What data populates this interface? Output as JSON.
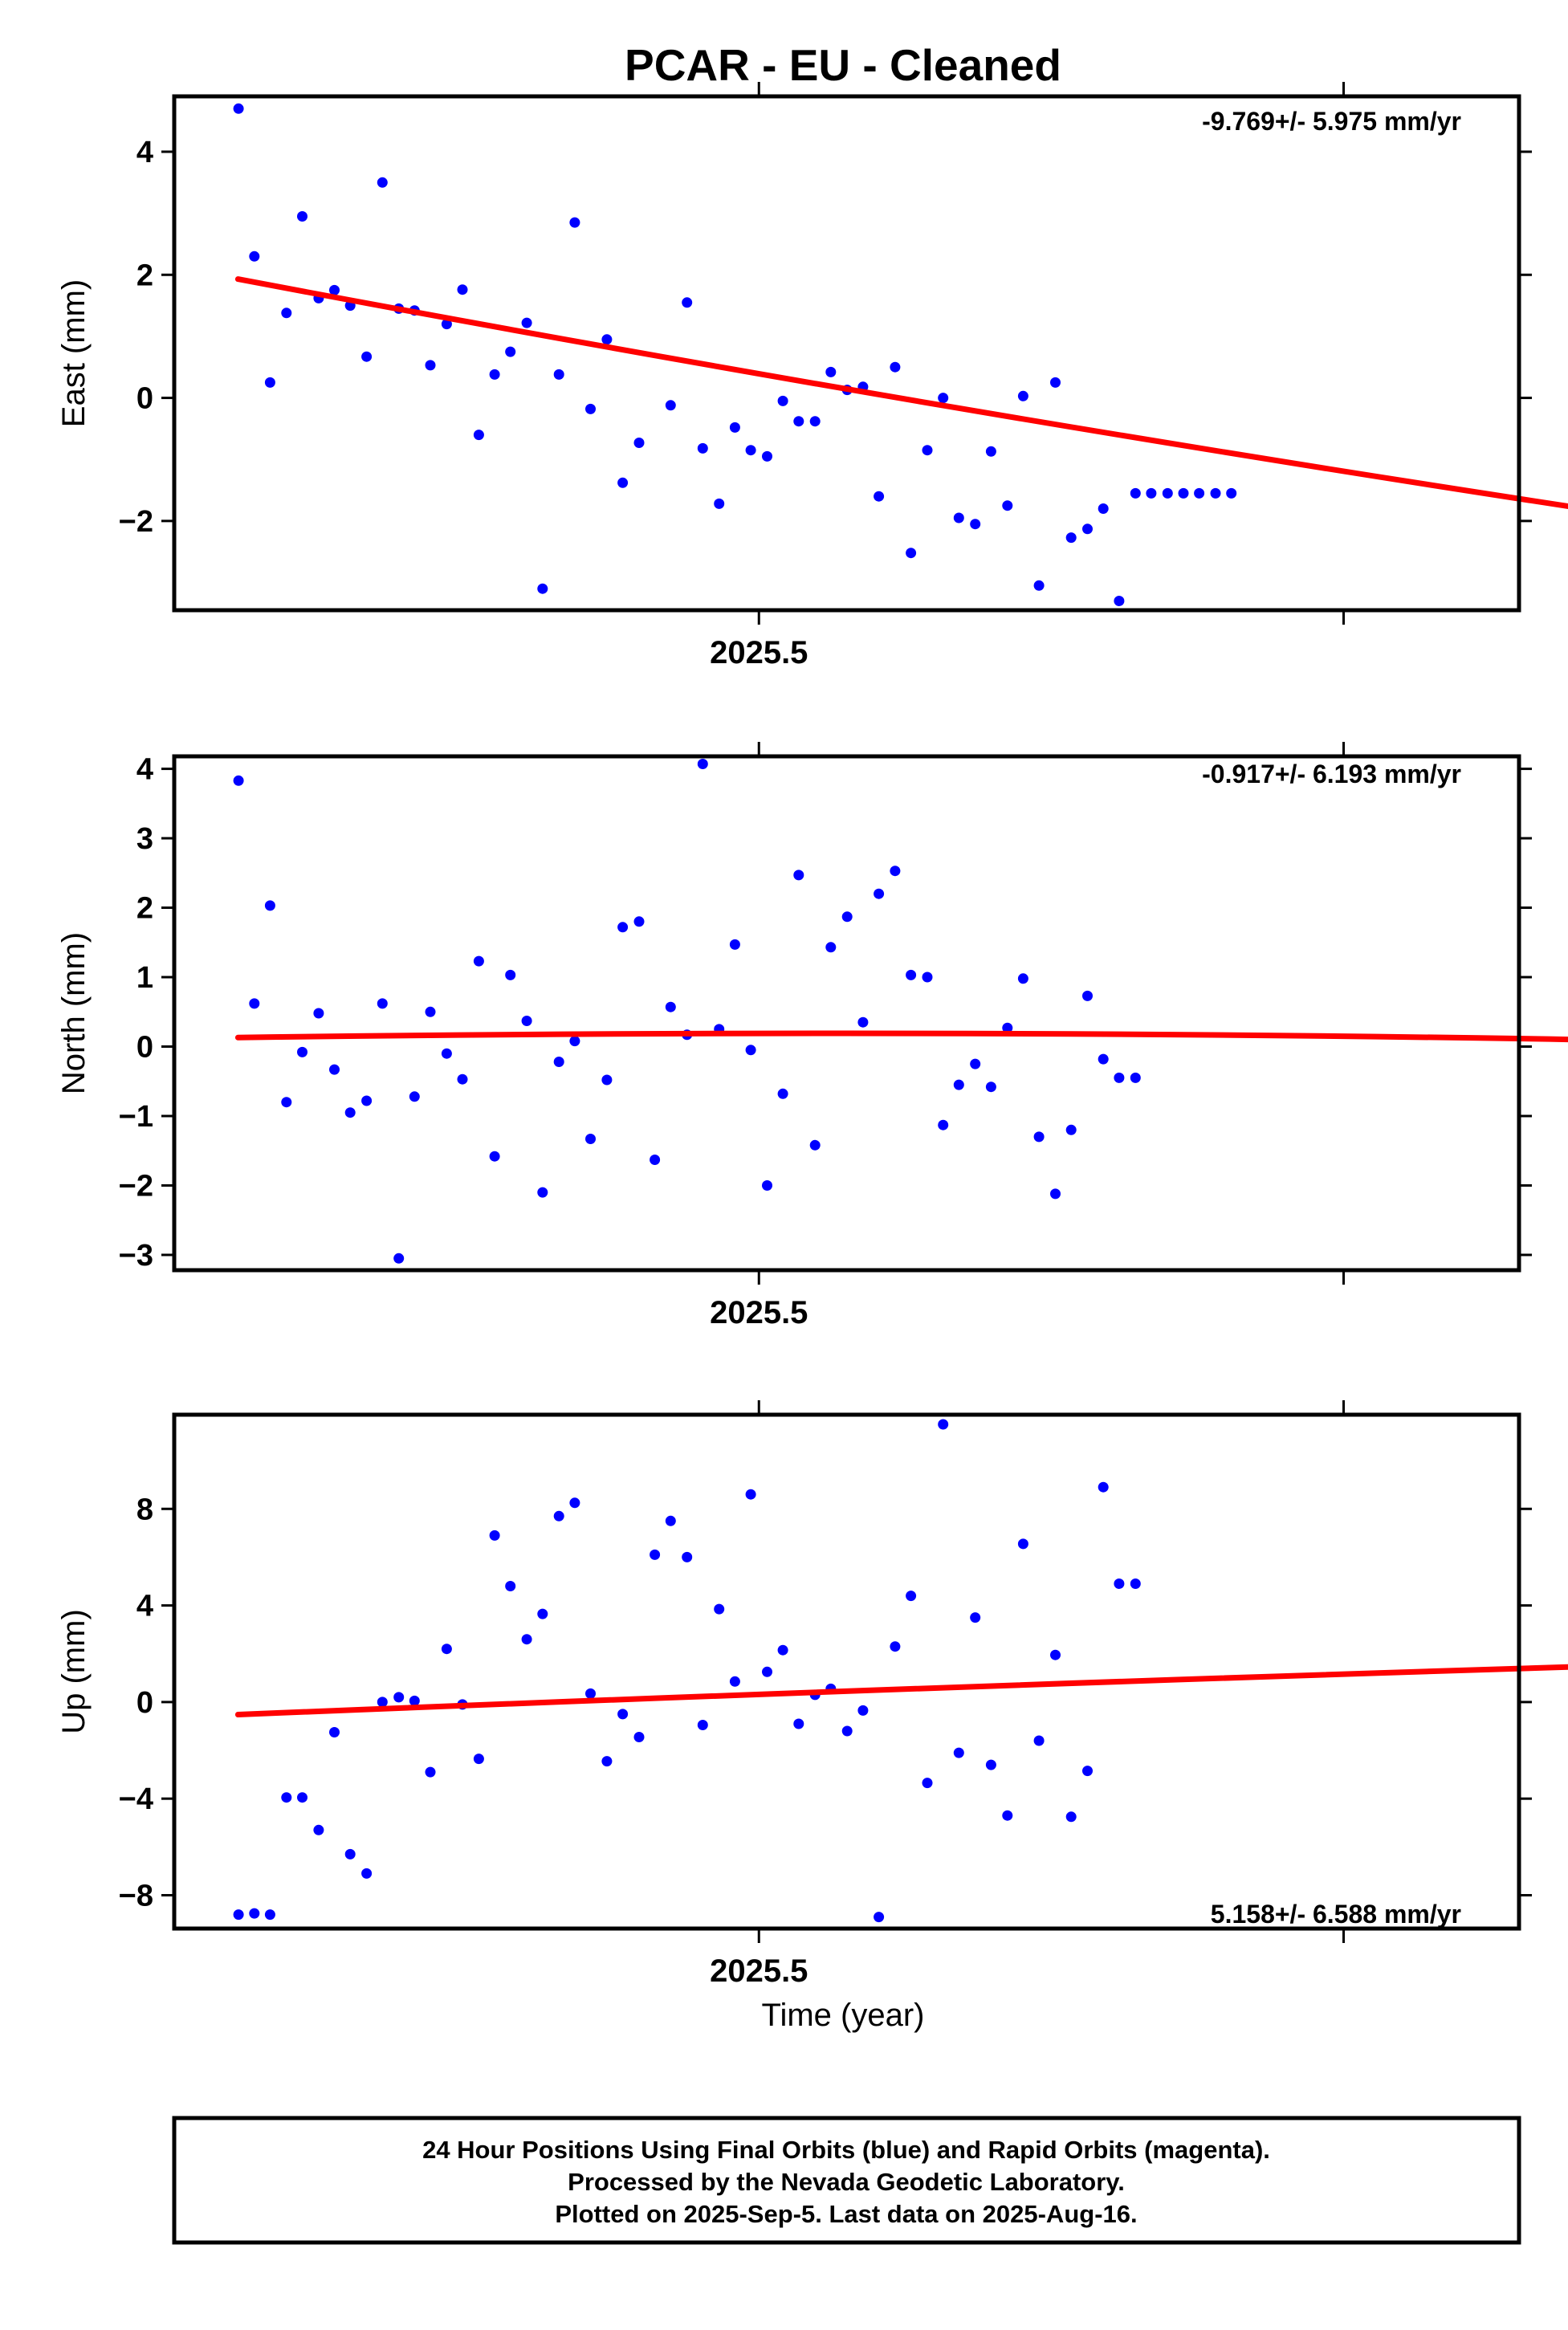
{
  "title": "PCAR  - EU - Cleaned",
  "xlabel": "Time (year)",
  "footer": {
    "lines": [
      "24 Hour Positions Using Final Orbits (blue) and Rapid Orbits (magenta).",
      "Processed by the Nevada Geodetic Laboratory.",
      "Plotted on 2025-Sep-5. Last data on 2025-Aug-16."
    ]
  },
  "colors": {
    "points": "#0000ff",
    "fit": "#ff0000",
    "frame": "#000000"
  },
  "chart_data": [
    {
      "type": "scatter",
      "ylabel": "East (mm)",
      "rate": "-9.769+/- 5.975 mm/yr",
      "xlim": [
        2025.4,
        2025.63
      ],
      "ylim": [
        -3.45,
        4.9
      ],
      "yticks": [
        -2,
        0,
        2,
        4
      ],
      "xtick_value": 2025.5,
      "xtick_label": "2025.5",
      "fit_line": [
        [
          2025.4109,
          1.93
        ],
        [
          2025.6411,
          -1.8
        ]
      ],
      "fit_curvature": 0.1,
      "points": {
        "x": [
          2025.411,
          2025.4137,
          2025.4164,
          2025.4192,
          2025.4219,
          2025.4247,
          2025.4274,
          2025.4301,
          2025.4329,
          2025.4356,
          2025.4384,
          2025.4411,
          2025.4438,
          2025.4466,
          2025.4493,
          2025.4521,
          2025.4548,
          2025.4575,
          2025.4603,
          2025.463,
          2025.4658,
          2025.4685,
          2025.4712,
          2025.474,
          2025.4767,
          2025.4795,
          2025.4849,
          2025.4877,
          2025.4904,
          2025.4932,
          2025.4959,
          2025.4986,
          2025.5014,
          2025.5041,
          2025.5068,
          2025.5096,
          2025.5123,
          2025.5151,
          2025.5178,
          2025.5205,
          2025.5233,
          2025.526,
          2025.5288,
          2025.5315,
          2025.5342,
          2025.537,
          2025.5397,
          2025.5425,
          2025.5452,
          2025.5479,
          2025.5507,
          2025.5534,
          2025.5562,
          2025.5589,
          2025.5616,
          2025.5644,
          2025.5671,
          2025.5699,
          2025.5726,
          2025.5753,
          2025.5781,
          2025.5808
        ],
        "y": [
          4.7,
          2.3,
          0.25,
          1.38,
          2.95,
          1.62,
          1.75,
          1.5,
          0.67,
          3.5,
          1.45,
          1.42,
          0.53,
          1.2,
          1.76,
          -0.6,
          0.38,
          0.75,
          1.22,
          -3.1,
          0.38,
          2.85,
          -0.18,
          0.95,
          -1.38,
          -0.73,
          -0.12,
          1.55,
          -0.82,
          -1.72,
          -0.48,
          -0.85,
          -0.95,
          -0.05,
          -0.38,
          -0.38,
          0.42,
          0.13,
          0.18,
          -1.6,
          0.5,
          -2.52,
          -0.85,
          0.0,
          -1.95,
          -2.05,
          -0.87,
          -1.75,
          0.03,
          -3.05,
          0.25,
          -2.27,
          -2.13,
          -1.8,
          -3.3,
          -1.55,
          -1.55,
          -1.55,
          -1.55,
          -1.55,
          -1.55,
          -1.55
        ]
      }
    },
    {
      "type": "scatter",
      "ylabel": "North (mm)",
      "rate": "-0.917+/- 6.193 mm/yr",
      "xlim": [
        2025.4,
        2025.63
      ],
      "ylim": [
        -3.22,
        4.18
      ],
      "yticks": [
        -3,
        -2,
        -1,
        0,
        1,
        2,
        3,
        4
      ],
      "xtick_value": 2025.5,
      "xtick_label": "2025.5",
      "fit_line": [
        [
          2025.4109,
          0.13
        ],
        [
          2025.6411,
          0.1
        ]
      ],
      "fit_curvature": 0.075,
      "points": {
        "x": [
          2025.411,
          2025.4137,
          2025.4164,
          2025.4192,
          2025.4219,
          2025.4247,
          2025.4274,
          2025.4301,
          2025.4329,
          2025.4356,
          2025.4384,
          2025.4411,
          2025.4438,
          2025.4466,
          2025.4493,
          2025.4521,
          2025.4548,
          2025.4575,
          2025.4603,
          2025.463,
          2025.4658,
          2025.4685,
          2025.4712,
          2025.474,
          2025.4767,
          2025.4795,
          2025.4822,
          2025.4849,
          2025.4877,
          2025.4904,
          2025.4932,
          2025.4959,
          2025.4986,
          2025.5014,
          2025.5041,
          2025.5068,
          2025.5096,
          2025.5123,
          2025.5151,
          2025.5178,
          2025.5205,
          2025.5233,
          2025.526,
          2025.5288,
          2025.5315,
          2025.5342,
          2025.537,
          2025.5397,
          2025.5425,
          2025.5452,
          2025.5479,
          2025.5507,
          2025.5534,
          2025.5562,
          2025.5589,
          2025.5616,
          2025.5644
        ],
        "y": [
          3.83,
          0.62,
          2.03,
          -0.8,
          -0.08,
          0.48,
          -0.33,
          -0.95,
          -0.78,
          0.62,
          -3.05,
          -0.72,
          0.5,
          -0.1,
          -0.47,
          1.23,
          -1.58,
          1.03,
          0.37,
          -2.1,
          -0.22,
          0.08,
          -1.33,
          -0.48,
          1.72,
          1.8,
          -1.63,
          0.57,
          0.17,
          4.07,
          0.25,
          1.47,
          -0.05,
          -2.0,
          -0.68,
          2.47,
          -1.42,
          1.43,
          1.87,
          0.35,
          2.2,
          2.53,
          1.03,
          1.0,
          -1.13,
          -0.55,
          -0.25,
          -0.58,
          0.27,
          0.98,
          -1.3,
          -2.12,
          -1.2,
          0.73,
          -0.18,
          -0.45,
          -0.45
        ]
      }
    },
    {
      "type": "scatter",
      "ylabel": "Up (mm)",
      "rate": "5.158+/- 6.588 mm/yr",
      "xlim": [
        2025.4,
        2025.63
      ],
      "ylim": [
        -9.38,
        11.9
      ],
      "yticks": [
        -8,
        -4,
        0,
        4,
        8
      ],
      "xtick_value": 2025.5,
      "xtick_label": "2025.5",
      "fit_line": [
        [
          2025.4109,
          -0.52
        ],
        [
          2025.6411,
          1.47
        ]
      ],
      "fit_curvature": 0.07,
      "points": {
        "x": [
          2025.411,
          2025.4137,
          2025.4164,
          2025.4192,
          2025.4219,
          2025.4247,
          2025.4274,
          2025.4301,
          2025.4329,
          2025.4356,
          2025.4384,
          2025.4411,
          2025.4438,
          2025.4466,
          2025.4493,
          2025.4521,
          2025.4548,
          2025.4575,
          2025.4603,
          2025.463,
          2025.4658,
          2025.4685,
          2025.4712,
          2025.474,
          2025.4767,
          2025.4795,
          2025.4822,
          2025.4849,
          2025.4877,
          2025.4904,
          2025.4932,
          2025.4959,
          2025.4986,
          2025.5014,
          2025.5041,
          2025.5068,
          2025.5096,
          2025.5123,
          2025.5151,
          2025.5178,
          2025.5205,
          2025.5233,
          2025.526,
          2025.5288,
          2025.5315,
          2025.5342,
          2025.537,
          2025.5397,
          2025.5425,
          2025.5452,
          2025.5479,
          2025.5507,
          2025.5534,
          2025.5562,
          2025.5589,
          2025.5616,
          2025.5644
        ],
        "y": [
          -8.8,
          -8.75,
          -8.8,
          -3.95,
          -3.95,
          -5.3,
          -1.25,
          -6.3,
          -7.1,
          0.0,
          0.2,
          0.05,
          -2.9,
          2.2,
          -0.1,
          -2.35,
          6.9,
          4.8,
          2.6,
          3.65,
          7.7,
          8.25,
          0.35,
          -2.45,
          -0.5,
          -1.45,
          6.1,
          7.5,
          6.0,
          -0.95,
          3.85,
          0.85,
          8.6,
          1.25,
          2.15,
          -0.9,
          0.3,
          0.55,
          -1.2,
          -0.35,
          -8.9,
          2.3,
          4.4,
          -3.35,
          11.5,
          -2.1,
          3.5,
          -2.6,
          -4.7,
          6.55,
          -1.6,
          1.95,
          -4.75,
          -2.85,
          8.9,
          4.9,
          4.9
        ]
      }
    }
  ]
}
